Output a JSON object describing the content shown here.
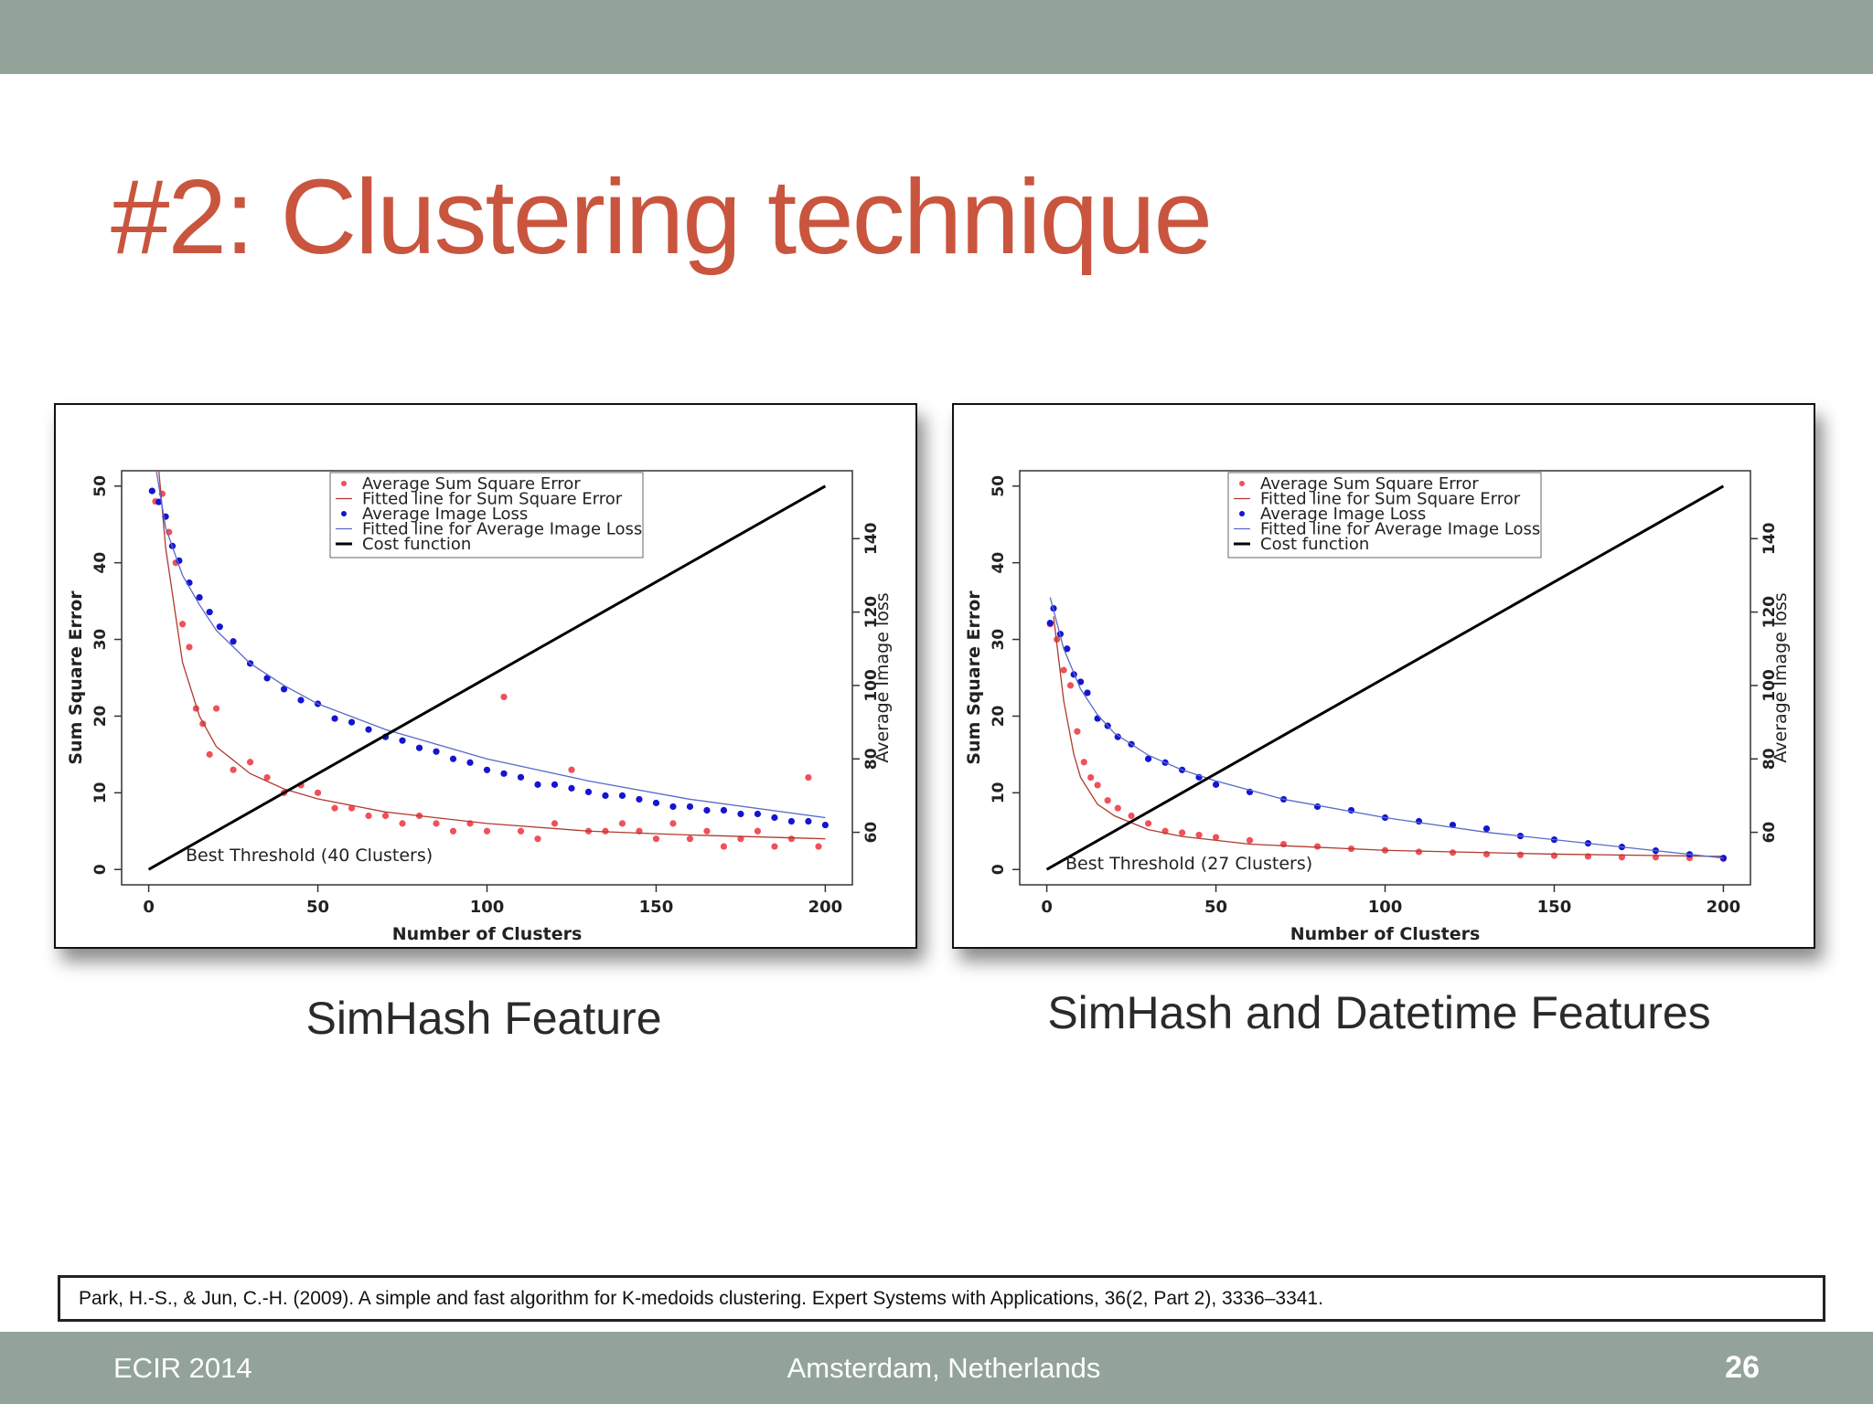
{
  "slide": {
    "title": "#2: Clustering technique"
  },
  "captions": [
    "SimHash Feature",
    "SimHash and Datetime Features"
  ],
  "reference": "Park, H.-S., & Jun, C.-H. (2009). A simple and fast algorithm for K-medoids clustering. Expert Systems with Applications, 36(2, Part 2), 3336–3341.",
  "footer": {
    "left": "ECIR 2014",
    "center": "Amsterdam, Netherlands",
    "page": "26"
  },
  "chart_data": [
    {
      "type": "scatter",
      "x_label": "Number of Clusters",
      "y_label": "Sum Square Error",
      "y2_label": "Average Image loss",
      "annotation": "Best Threshold (40 Clusters)",
      "legend": "top",
      "xlim": [
        -8,
        208
      ],
      "ylim": [
        -2,
        52
      ],
      "y2lim": [
        45.7,
        158.5
      ],
      "xticks": [
        0,
        50,
        100,
        150,
        200
      ],
      "yticks": [
        0,
        10,
        20,
        30,
        40,
        50
      ],
      "y2ticks": [
        60,
        80,
        100,
        120,
        140
      ],
      "series": [
        {
          "name": "Average Sum Square Error",
          "mode": "markers",
          "color": "#f0505a",
          "x": [
            2,
            4,
            6,
            8,
            10,
            12,
            14,
            16,
            18,
            20,
            25,
            30,
            35,
            40,
            45,
            50,
            55,
            60,
            65,
            70,
            75,
            80,
            85,
            90,
            95,
            100,
            105,
            110,
            115,
            120,
            125,
            130,
            135,
            140,
            145,
            150,
            155,
            160,
            165,
            170,
            175,
            180,
            185,
            190,
            195,
            198
          ],
          "values": [
            48,
            49,
            44,
            40,
            32,
            29,
            21,
            19,
            15,
            21,
            13,
            14,
            12,
            10,
            11,
            10,
            8,
            8,
            7,
            7,
            6,
            7,
            6,
            5,
            6,
            5,
            22.5,
            5,
            4,
            6,
            13,
            5,
            5,
            6,
            5,
            4,
            6,
            4,
            5,
            3,
            4,
            5,
            3,
            4,
            12,
            3
          ]
        },
        {
          "name": "Fitted line for Sum Square Error",
          "mode": "lines",
          "color": "#b03a2e",
          "x": [
            3,
            5,
            8,
            10,
            15,
            20,
            30,
            40,
            50,
            70,
            100,
            130,
            160,
            200
          ],
          "values": [
            52,
            42,
            33,
            27,
            20,
            16,
            12.5,
            10.5,
            9.2,
            7.5,
            6,
            5,
            4.5,
            4
          ]
        },
        {
          "name": "Average Image Loss",
          "mode": "markers",
          "color": "#1414d2",
          "axis": "y2",
          "x": [
            1,
            3,
            5,
            7,
            9,
            12,
            15,
            18,
            21,
            25,
            30,
            35,
            40,
            45,
            50,
            55,
            60,
            65,
            70,
            75,
            80,
            85,
            90,
            95,
            100,
            105,
            110,
            115,
            120,
            125,
            130,
            135,
            140,
            145,
            150,
            155,
            160,
            165,
            170,
            175,
            180,
            185,
            190,
            195,
            200
          ],
          "values": [
            153,
            150,
            146,
            138,
            134,
            128,
            124,
            120,
            116,
            112,
            106,
            102,
            99,
            96,
            95,
            91,
            90,
            88,
            86,
            85,
            83,
            82,
            80,
            79,
            77,
            76,
            75,
            73,
            73,
            72,
            71,
            70,
            70,
            69,
            68,
            67,
            67,
            66,
            66,
            65,
            65,
            64,
            63,
            63,
            62
          ]
        },
        {
          "name": "Fitted line for Average Image Loss",
          "mode": "lines",
          "color": "#5a6ac8",
          "axis": "y2",
          "x": [
            2,
            5,
            10,
            15,
            20,
            30,
            40,
            50,
            70,
            100,
            130,
            160,
            200
          ],
          "values": [
            160,
            143,
            130,
            122,
            115,
            106,
            100,
            95,
            88,
            80,
            74,
            69,
            64
          ]
        },
        {
          "name": "Cost function",
          "mode": "lines",
          "color": "#000000",
          "width": 3,
          "x": [
            0,
            200
          ],
          "values": [
            0,
            50
          ]
        }
      ]
    },
    {
      "type": "scatter",
      "x_label": "Number of Clusters",
      "y_label": "Sum Square Error",
      "y2_label": "Average Image loss",
      "annotation": "Best Threshold (27 Clusters)",
      "legend": "top",
      "xlim": [
        -8,
        208
      ],
      "ylim": [
        -2,
        52
      ],
      "y2lim": [
        45.7,
        158.5
      ],
      "xticks": [
        0,
        50,
        100,
        150,
        200
      ],
      "yticks": [
        0,
        10,
        20,
        30,
        40,
        50
      ],
      "y2ticks": [
        60,
        80,
        100,
        120,
        140
      ],
      "series": [
        {
          "name": "Average Sum Square Error",
          "mode": "markers",
          "color": "#f0505a",
          "x": [
            1,
            3,
            5,
            7,
            9,
            11,
            13,
            15,
            18,
            21,
            25,
            30,
            35,
            40,
            45,
            50,
            60,
            70,
            80,
            90,
            100,
            110,
            120,
            130,
            140,
            150,
            160,
            170,
            180,
            190,
            200
          ],
          "values": [
            32,
            30,
            26,
            24,
            18,
            14,
            12,
            11,
            9,
            8,
            7,
            6,
            5,
            4.8,
            4.5,
            4.2,
            3.8,
            3.3,
            3,
            2.7,
            2.5,
            2.3,
            2.2,
            2,
            1.9,
            1.8,
            1.7,
            1.6,
            1.6,
            1.5,
            1.4
          ]
        },
        {
          "name": "Fitted line for Sum Square Error",
          "mode": "lines",
          "color": "#b03a2e",
          "x": [
            2,
            5,
            8,
            10,
            15,
            20,
            30,
            40,
            60,
            100,
            150,
            200
          ],
          "values": [
            33,
            22,
            15,
            12,
            8.5,
            7,
            5.2,
            4.3,
            3.3,
            2.5,
            2,
            1.7
          ]
        },
        {
          "name": "Average Image Loss",
          "mode": "markers",
          "color": "#1414d2",
          "axis": "y2",
          "x": [
            1,
            2,
            4,
            6,
            8,
            10,
            12,
            15,
            18,
            21,
            25,
            30,
            35,
            40,
            45,
            50,
            60,
            70,
            80,
            90,
            100,
            110,
            120,
            130,
            140,
            150,
            160,
            170,
            180,
            190,
            200
          ],
          "values": [
            117,
            121,
            114,
            110,
            103,
            101,
            98,
            91,
            89,
            86,
            84,
            80,
            79,
            77,
            75,
            73,
            71,
            69,
            67,
            66,
            64,
            63,
            62,
            61,
            59,
            58,
            57,
            56,
            55,
            54,
            53
          ]
        },
        {
          "name": "Fitted line for Average Image Loss",
          "mode": "lines",
          "color": "#5a6ac8",
          "axis": "y2",
          "x": [
            1,
            5,
            10,
            15,
            20,
            30,
            40,
            50,
            70,
            100,
            130,
            160,
            200
          ],
          "values": [
            124,
            110,
            99,
            92,
            87,
            81,
            77,
            74,
            69,
            64,
            60,
            57,
            53
          ]
        },
        {
          "name": "Cost function",
          "mode": "lines",
          "color": "#000000",
          "width": 3,
          "x": [
            0,
            200
          ],
          "values": [
            0,
            50
          ]
        }
      ]
    }
  ]
}
